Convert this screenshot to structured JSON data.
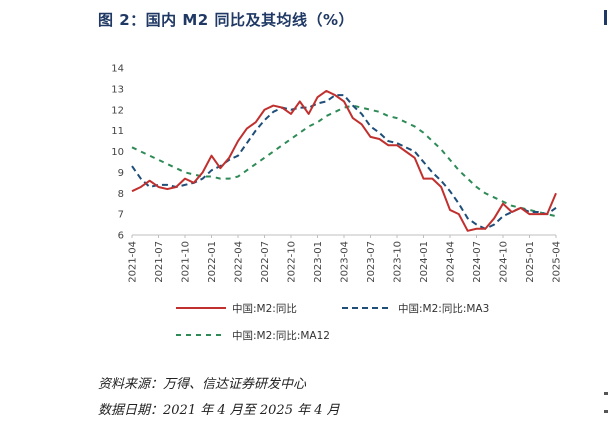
{
  "header": {
    "title": "图 2：国内 M2 同比及其均线（%）"
  },
  "footer": {
    "source": "资料来源：万得、信达证券研发中心",
    "data_date": "数据日期：2021 年 4 月至 2025 年 4 月"
  },
  "chart_data": {
    "type": "line",
    "title": "",
    "xlabel": "",
    "ylabel": "",
    "ylim": [
      6,
      14
    ],
    "yticks": [
      "6",
      "7",
      "8",
      "9",
      "10",
      "11",
      "12",
      "13",
      "14"
    ],
    "xtick_labels": [
      "2021-04",
      "2021-07",
      "2021-10",
      "2022-01",
      "2022-04",
      "2022-07",
      "2022-10",
      "2023-01",
      "2023-04",
      "2023-07",
      "2023-10",
      "2024-01",
      "2024-04",
      "2024-07",
      "2024-10",
      "2025-01",
      "2025-04"
    ],
    "grid": false,
    "legend_position": "bottom",
    "colors": {
      "m2": "#c0302e",
      "ma3": "#1f4e79",
      "ma12": "#2e8b57"
    },
    "series": [
      {
        "name": "中国:M2:同比",
        "style": "solid",
        "values": [
          8.1,
          8.3,
          8.6,
          8.3,
          8.2,
          8.3,
          8.7,
          8.5,
          9.0,
          9.8,
          9.2,
          9.7,
          10.5,
          11.1,
          11.4,
          12.0,
          12.2,
          12.1,
          11.8,
          12.4,
          11.8,
          12.6,
          12.9,
          12.7,
          12.4,
          11.6,
          11.3,
          10.7,
          10.6,
          10.3,
          10.3,
          10.0,
          9.7,
          8.7,
          8.7,
          8.3,
          7.2,
          7.0,
          6.2,
          6.3,
          6.3,
          6.8,
          7.5,
          7.1,
          7.3,
          7.0,
          7.0,
          7.0,
          8.0
        ]
      },
      {
        "name": "中国:M2:同比:MA3",
        "style": "dashed",
        "values": [
          9.3,
          8.7,
          8.3,
          8.4,
          8.4,
          8.3,
          8.4,
          8.5,
          8.7,
          9.1,
          9.3,
          9.6,
          9.8,
          10.4,
          11.0,
          11.5,
          11.9,
          12.1,
          12.0,
          12.1,
          12.1,
          12.3,
          12.4,
          12.7,
          12.7,
          12.2,
          11.8,
          11.2,
          10.9,
          10.5,
          10.4,
          10.2,
          10.0,
          9.5,
          9.0,
          8.6,
          8.1,
          7.5,
          6.8,
          6.5,
          6.3,
          6.5,
          6.9,
          7.1,
          7.3,
          7.1,
          7.1,
          7.0,
          7.3
        ]
      },
      {
        "name": "中国:M2:同比:MA12",
        "style": "dashed",
        "values": [
          10.2,
          10.0,
          9.8,
          9.6,
          9.4,
          9.2,
          9.0,
          8.9,
          8.8,
          8.8,
          8.7,
          8.7,
          8.8,
          9.1,
          9.4,
          9.7,
          10.0,
          10.3,
          10.6,
          10.9,
          11.2,
          11.4,
          11.7,
          11.9,
          12.1,
          12.2,
          12.1,
          12.0,
          11.9,
          11.7,
          11.6,
          11.4,
          11.2,
          10.9,
          10.5,
          10.1,
          9.6,
          9.1,
          8.7,
          8.3,
          8.0,
          7.8,
          7.6,
          7.4,
          7.3,
          7.2,
          7.1,
          7.0,
          6.9
        ]
      }
    ]
  }
}
